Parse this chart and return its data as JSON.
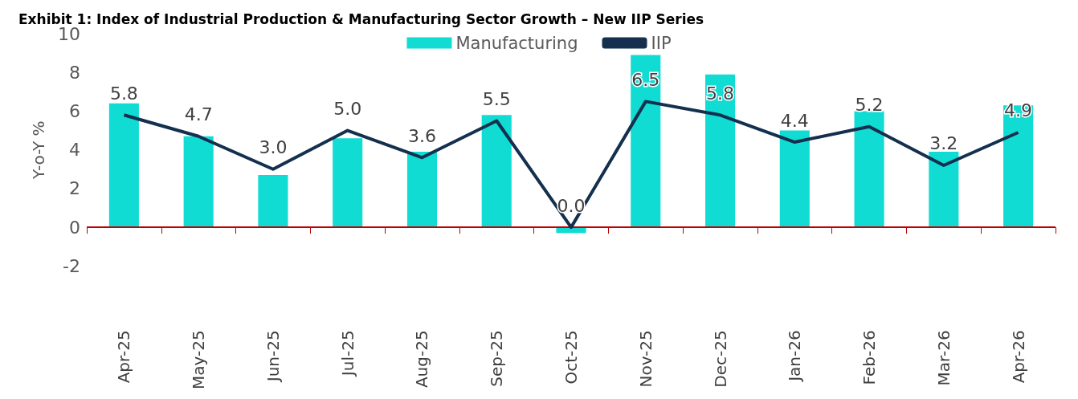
{
  "chart_data": {
    "type": "bar",
    "title": "Exhibit 1: Index of Industrial Production & Manufacturing Sector Growth – New IIP Series",
    "ylabel": "Y-o-Y %",
    "categories": [
      "Apr-25",
      "May-25",
      "Jun-25",
      "Jul-25",
      "Aug-25",
      "Sep-25",
      "Oct-25",
      "Nov-25",
      "Dec-25",
      "Jan-26",
      "Feb-26",
      "Mar-26",
      "Apr-26"
    ],
    "series": [
      {
        "name": "Manufacturing",
        "color": "#11dcd4",
        "values": [
          6.4,
          4.7,
          2.7,
          4.6,
          3.9,
          5.8,
          -0.3,
          8.9,
          7.9,
          5.0,
          6.0,
          3.9,
          6.3
        ]
      },
      {
        "name": "IIP",
        "type": "line",
        "color": "#14304e",
        "values": [
          5.8,
          4.7,
          3.0,
          5.0,
          3.6,
          5.5,
          0.0,
          6.5,
          5.8,
          4.4,
          5.2,
          3.2,
          4.9
        ],
        "value_labels": [
          "5.8",
          "4.7",
          "3.0",
          "5.0",
          "3.6",
          "5.5",
          "0.0",
          "6.5",
          "5.8",
          "4.4",
          "5.2",
          "3.2",
          "4.9"
        ]
      }
    ],
    "ylim": [
      -2,
      10
    ],
    "yticks": [
      -2,
      0,
      2,
      4,
      6,
      8,
      10
    ],
    "ref_lines": [
      {
        "axis": "y",
        "value": 0,
        "color": "#c00000"
      }
    ],
    "grid": false,
    "legend": "top",
    "marker": "none"
  }
}
